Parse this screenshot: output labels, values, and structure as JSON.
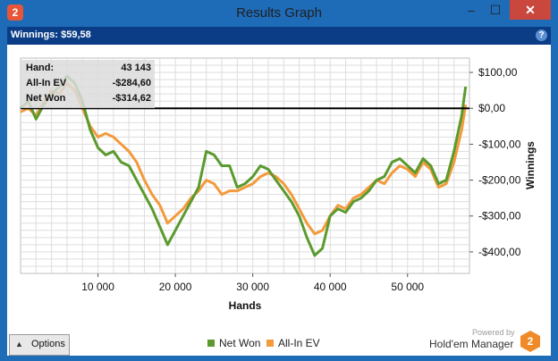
{
  "window": {
    "title": "Results Graph",
    "app_icon_glyph": "2",
    "minimize_glyph": "–",
    "maximize_glyph": "☐",
    "close_glyph": "✕"
  },
  "header": {
    "winnings_label": "Winnings: $59,58",
    "help_glyph": "?"
  },
  "tooltip": {
    "rows": [
      {
        "key": "Hand:",
        "value": "43 143"
      },
      {
        "key": "All-In EV",
        "value": "-$284,60"
      },
      {
        "key": "Net Won",
        "value": "-$314,62"
      }
    ]
  },
  "footer": {
    "options_label": "Options",
    "options_arrow": "▲",
    "powered_by": "Powered by",
    "brand": "Hold'em Manager",
    "brand_logo_glyph": "2"
  },
  "colors": {
    "net_won": "#5a9a2e",
    "all_in_ev": "#f39a3c",
    "zero_line": "#000000",
    "grid": "#dddddd"
  },
  "chart_data": {
    "type": "line",
    "xlabel": "Hands",
    "ylabel": "Winnings",
    "xlim": [
      0,
      58000
    ],
    "ylim": [
      -460,
      140
    ],
    "x_ticks": [
      10000,
      20000,
      30000,
      40000,
      50000
    ],
    "x_tick_labels": [
      "10 000",
      "20 000",
      "30 000",
      "40 000",
      "50 000"
    ],
    "y_ticks": [
      100,
      0,
      -100,
      -200,
      -300,
      -400
    ],
    "y_tick_labels": [
      "$100,00",
      "$0,00",
      "-$100,00",
      "-$200,00",
      "-$300,00",
      "-$400,00"
    ],
    "legend_position": "bottom",
    "grid": true,
    "series": [
      {
        "name": "Net Won",
        "x": [
          0,
          1000,
          2000,
          3000,
          4000,
          5000,
          6000,
          7000,
          8000,
          9000,
          10000,
          11000,
          12000,
          13000,
          14000,
          15000,
          16000,
          17000,
          18000,
          19000,
          20000,
          21000,
          22000,
          23000,
          24000,
          25000,
          26000,
          27000,
          28000,
          29000,
          30000,
          31000,
          32000,
          33000,
          34000,
          35000,
          36000,
          37000,
          38000,
          39000,
          40000,
          41000,
          42000,
          43000,
          44000,
          45000,
          46000,
          47000,
          48000,
          49000,
          50000,
          51000,
          52000,
          53000,
          54000,
          55000,
          56000,
          57000,
          57500
        ],
        "values": [
          0,
          20,
          -30,
          10,
          40,
          60,
          90,
          70,
          20,
          -60,
          -110,
          -130,
          -120,
          -150,
          -160,
          -200,
          -240,
          -280,
          -330,
          -380,
          -340,
          -300,
          -260,
          -220,
          -120,
          -130,
          -160,
          -160,
          -220,
          -210,
          -190,
          -160,
          -170,
          -200,
          -230,
          -260,
          -300,
          -360,
          -410,
          -390,
          -300,
          -280,
          -290,
          -260,
          -250,
          -230,
          -200,
          -190,
          -150,
          -140,
          -160,
          -180,
          -140,
          -160,
          -210,
          -200,
          -120,
          -20,
          60
        ]
      },
      {
        "name": "All-In EV",
        "x": [
          0,
          1000,
          2000,
          3000,
          4000,
          5000,
          6000,
          7000,
          8000,
          9000,
          10000,
          11000,
          12000,
          13000,
          14000,
          15000,
          16000,
          17000,
          18000,
          19000,
          20000,
          21000,
          22000,
          23000,
          24000,
          25000,
          26000,
          27000,
          28000,
          29000,
          30000,
          31000,
          32000,
          33000,
          34000,
          35000,
          36000,
          37000,
          38000,
          39000,
          40000,
          41000,
          42000,
          43000,
          44000,
          45000,
          46000,
          47000,
          48000,
          49000,
          50000,
          51000,
          52000,
          53000,
          54000,
          55000,
          56000,
          57000,
          57500
        ],
        "values": [
          -10,
          0,
          -20,
          20,
          50,
          40,
          70,
          50,
          0,
          -50,
          -80,
          -70,
          -80,
          -100,
          -120,
          -150,
          -200,
          -240,
          -270,
          -320,
          -300,
          -280,
          -250,
          -230,
          -200,
          -210,
          -240,
          -230,
          -230,
          -220,
          -210,
          -190,
          -180,
          -190,
          -210,
          -240,
          -280,
          -320,
          -350,
          -340,
          -300,
          -270,
          -280,
          -250,
          -240,
          -220,
          -200,
          -210,
          -180,
          -160,
          -170,
          -190,
          -150,
          -170,
          -220,
          -210,
          -150,
          -60,
          10
        ]
      }
    ]
  }
}
